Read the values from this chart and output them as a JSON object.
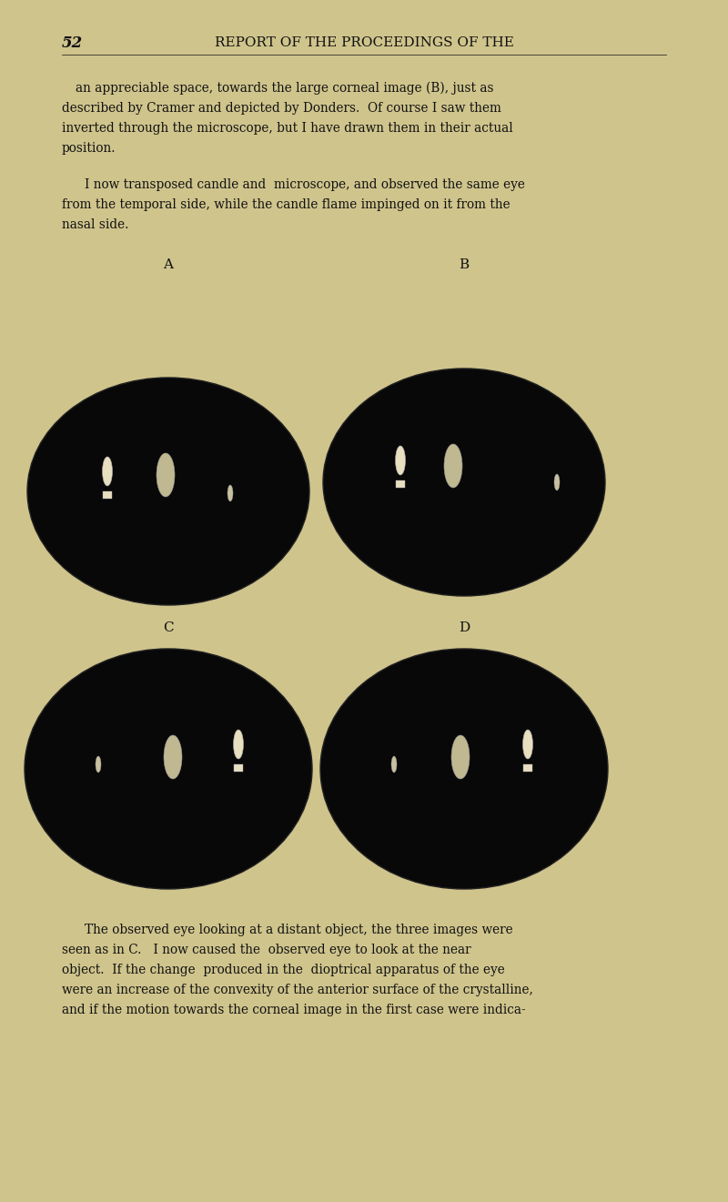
{
  "bg_color": "#cfc48c",
  "text_color": "#111111",
  "page_number": "52",
  "header": "REPORT OF THE PROCEEDINGS OF THE",
  "oval_fill": "#080808",
  "reflection_fill": "#c0b890",
  "candle_fill": "#e8dfc0",
  "small_fill": "#c8c0a0",
  "labels": [
    "A",
    "B",
    "C",
    "D"
  ],
  "para1_lines": [
    "an appreciable space, towards the large corneal image (B), just as",
    "described by Cramer and depicted by Donders.  Of course I saw them",
    "inverted through the microscope, but I have drawn them in their actual",
    "position."
  ],
  "para2_lines": [
    "I now transposed candle and  microscope, and observed the same eye",
    "from the temporal side, while the candle flame impinged on it from the",
    "nasal side."
  ],
  "para3_lines": [
    "The observed eye looking at a distant object, the three images were",
    "seen as in C.   I now caused the  observed eye to look at the near",
    "object.  If the change  produced in the  dioptrical apparatus of the eye",
    "were an increase of the convexity of the anterior surface of the crystalline,",
    "and if the motion towards the corneal image in the first case were indica-"
  ]
}
